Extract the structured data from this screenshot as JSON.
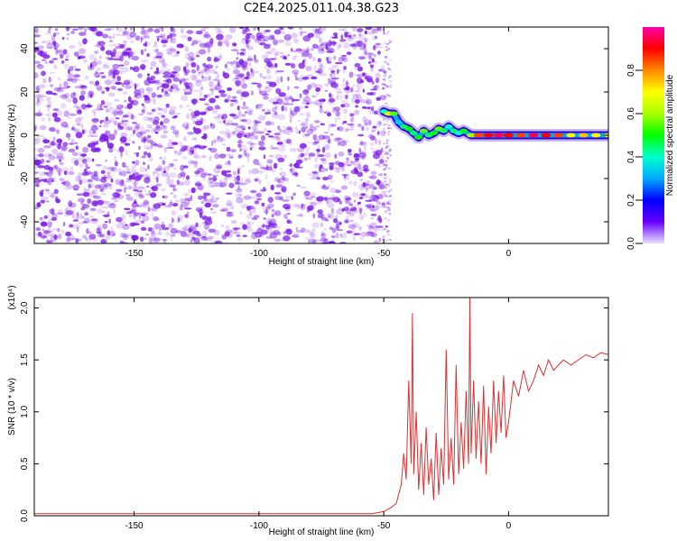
{
  "title": "C2E4.2025.011.04.38.G23",
  "colors": {
    "signal": "#e03030",
    "scatter": "#7a1ae6",
    "frame": "#000000"
  },
  "chart_data": [
    {
      "type": "heatmap",
      "xlabel": "Height of straight line (km)",
      "ylabel": "Frequency (Hz)",
      "xlim": [
        -190,
        40
      ],
      "ylim": [
        -50,
        50
      ],
      "xticks": [
        -150,
        -100,
        -50,
        0
      ],
      "yticks": [
        -40,
        -20,
        0,
        20,
        40
      ],
      "colorbar": {
        "label": "Normalized spectral amplitude",
        "range": [
          0,
          1
        ],
        "ticks": [
          "0.0",
          "0.2",
          "0.4",
          "0.6",
          "0.8"
        ],
        "colormap": [
          "#e8e0ff",
          "#6600ff",
          "#0000ff",
          "#00aaff",
          "#00ffcc",
          "#00ff00",
          "#aaff00",
          "#ffff00",
          "#ff8800",
          "#ff0000",
          "#ff00aa"
        ]
      },
      "noise_region_x": [
        -190,
        -50
      ],
      "signal_trace": {
        "x": [
          -50,
          -48,
          -46,
          -44,
          -42,
          -40,
          -38,
          -36,
          -34,
          -32,
          -30,
          -28,
          -26,
          -24,
          -22,
          -20,
          -18,
          -15,
          -12,
          -8,
          -4,
          0,
          5,
          10,
          15,
          20,
          25,
          30,
          35,
          40
        ],
        "y": [
          11,
          10,
          10,
          6,
          4,
          3,
          1,
          -1,
          2,
          0,
          1,
          3,
          2,
          4,
          2,
          1,
          2,
          0,
          0,
          0,
          0,
          0,
          0,
          0,
          0,
          0,
          0,
          0,
          0,
          0
        ],
        "amplitude": [
          0.4,
          0.65,
          0.55,
          0.35,
          0.45,
          0.5,
          0.45,
          0.5,
          0.55,
          0.45,
          0.5,
          0.55,
          0.45,
          0.4,
          0.45,
          0.4,
          0.5,
          0.6,
          0.85,
          0.9,
          0.95,
          0.9,
          0.85,
          0.95,
          0.9,
          0.85,
          0.7,
          0.75,
          0.7,
          0.65
        ]
      }
    },
    {
      "type": "line",
      "xlabel": "Height of straight line (km)",
      "ylabel": "SNR (10 * v/v)",
      "multiplier": "(x10⁴)",
      "xlim": [
        -190,
        40
      ],
      "ylim": [
        0,
        2.1
      ],
      "xticks": [
        -150,
        -100,
        -50,
        0
      ],
      "yticks": [
        "0.0",
        "0.5",
        "1.0",
        "1.5",
        "2.0"
      ],
      "series": [
        {
          "x": [
            -190,
            -170,
            -150,
            -130,
            -110,
            -90,
            -70,
            -55,
            -50,
            -47,
            -45,
            -43,
            -42,
            -41,
            -40,
            -39,
            -38.5,
            -38,
            -37,
            -36,
            -35,
            -34,
            -33,
            -32,
            -31,
            -30,
            -29,
            -28,
            -27,
            -26,
            -25,
            -24,
            -23,
            -22,
            -21,
            -20,
            -19,
            -18,
            -17,
            -16,
            -15.5,
            -15,
            -14,
            -13,
            -12,
            -11,
            -10,
            -9,
            -8,
            -7,
            -6,
            -5,
            -4,
            -3,
            -2,
            -1,
            0,
            2,
            4,
            6,
            8,
            10,
            12,
            14,
            16,
            18,
            20,
            22,
            25,
            28,
            31,
            34,
            37,
            40
          ],
          "y": [
            0.02,
            0.02,
            0.02,
            0.02,
            0.02,
            0.02,
            0.02,
            0.02,
            0.04,
            0.08,
            0.12,
            0.3,
            0.6,
            0.35,
            1.3,
            0.5,
            1.95,
            0.4,
            1.0,
            0.25,
            0.7,
            0.2,
            0.85,
            0.3,
            0.55,
            0.15,
            0.8,
            0.2,
            0.65,
            0.3,
            1.6,
            0.35,
            0.75,
            0.3,
            1.45,
            0.4,
            0.9,
            0.45,
            1.2,
            0.5,
            2.1,
            0.6,
            1.3,
            0.55,
            1.1,
            0.5,
            1.25,
            0.4,
            1.05,
            0.6,
            1.3,
            0.7,
            1.2,
            0.8,
            1.35,
            0.75,
            0.9,
            1.3,
            1.15,
            1.4,
            1.2,
            1.3,
            1.45,
            1.35,
            1.5,
            1.4,
            1.45,
            1.5,
            1.45,
            1.5,
            1.55,
            1.52,
            1.57,
            1.55
          ]
        }
      ]
    }
  ]
}
